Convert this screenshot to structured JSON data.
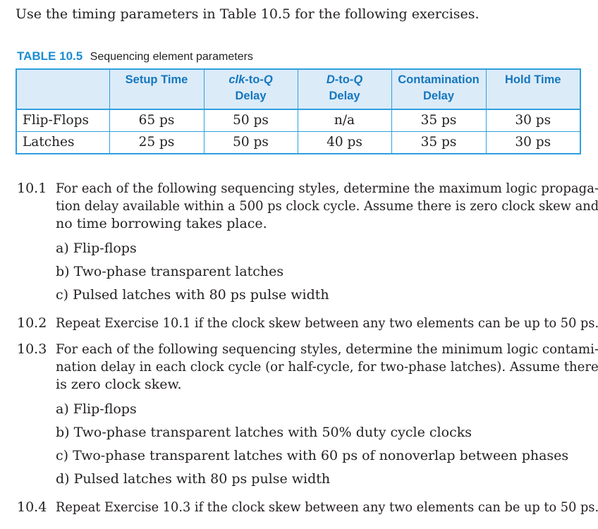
{
  "intro": "Use the timing parameters in Table 10.5 for the following exercises.",
  "table": {
    "number": "TABLE 10.5",
    "caption": "Sequencing element parameters",
    "headers": [
      {
        "a": "",
        "b": ""
      },
      {
        "a": "Setup Time",
        "b": ""
      },
      {
        "a_it": "clk",
        "a": "-to-",
        "a_it2": "Q",
        "b": "Delay"
      },
      {
        "a_it": "D",
        "a": "-to-",
        "a_it2": "Q",
        "b": "Delay"
      },
      {
        "a": "Contamination",
        "b": "Delay"
      },
      {
        "a": "Hold Time",
        "b": ""
      }
    ],
    "rows": [
      [
        "Flip-Flops",
        "65 ps",
        "50 ps",
        "n/a",
        "35 ps",
        "30 ps"
      ],
      [
        "Latches",
        "25 ps",
        "50 ps",
        "40 ps",
        "35 ps",
        "30 ps"
      ]
    ]
  },
  "exercises": [
    {
      "num": "10.1",
      "lines": [
        "For each of the following sequencing styles, determine the maximum logic propaga-",
        "tion delay available within a 500 ps clock cycle. Assume there is zero clock skew and",
        "no time borrowing takes place."
      ],
      "items": [
        "a) Flip-flops",
        "b) Two-phase transparent latches",
        "c) Pulsed latches with 80 ps pulse width"
      ]
    },
    {
      "num": "10.2",
      "lines": [
        "Repeat Exercise 10.1 if the clock skew between any two elements can be up to 50 ps."
      ],
      "items": []
    },
    {
      "num": "10.3",
      "lines": [
        "For each of the following sequencing styles, determine the minimum logic contami-",
        "nation delay in each clock cycle (or half-cycle, for two-phase latches). Assume there",
        "is zero clock skew."
      ],
      "items": [
        "a) Flip-flops",
        "b) Two-phase transparent latches with 50% duty cycle clocks",
        "c) Two-phase transparent latches with 60 ps of nonoverlap between phases",
        "d) Pulsed latches with 80 ps pulse width"
      ]
    },
    {
      "num": "10.4",
      "lines": [
        "Repeat Exercise 10.3 if the clock skew between any two elements can be up to 50 ps."
      ],
      "items": []
    }
  ]
}
